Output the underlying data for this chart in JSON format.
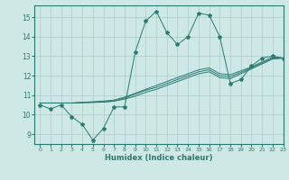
{
  "xlabel": "Humidex (Indice chaleur)",
  "xlim": [
    -0.5,
    23
  ],
  "ylim": [
    8.5,
    15.6
  ],
  "yticks": [
    9,
    10,
    11,
    12,
    13,
    14,
    15
  ],
  "xticks": [
    0,
    1,
    2,
    3,
    4,
    5,
    6,
    7,
    8,
    9,
    10,
    11,
    12,
    13,
    14,
    15,
    16,
    17,
    18,
    19,
    20,
    21,
    22,
    23
  ],
  "bg_color": "#cee8e6",
  "grid_color": "#b0d0ce",
  "line_color": "#2a7a70",
  "line1_x": [
    0,
    1,
    2,
    3,
    4,
    5,
    6,
    7,
    8,
    9,
    10,
    11,
    12,
    13,
    14,
    15,
    16,
    17,
    18,
    19,
    20,
    21,
    22,
    23
  ],
  "line1_y": [
    10.5,
    10.3,
    10.5,
    9.9,
    9.5,
    8.7,
    9.3,
    10.4,
    10.4,
    13.2,
    14.8,
    15.3,
    14.2,
    13.6,
    14.0,
    15.2,
    15.1,
    14.0,
    11.6,
    11.8,
    12.5,
    12.9,
    13.0,
    12.9
  ],
  "line2_x": [
    0,
    2,
    3,
    6,
    7,
    8,
    9,
    10,
    11,
    12,
    13,
    14,
    15,
    16,
    17,
    18,
    20,
    21,
    22,
    23
  ],
  "line2_y": [
    10.6,
    10.6,
    10.6,
    10.65,
    10.7,
    10.8,
    10.95,
    11.15,
    11.3,
    11.5,
    11.7,
    11.9,
    12.1,
    12.2,
    11.9,
    11.85,
    12.35,
    12.6,
    12.85,
    12.9
  ],
  "line3_x": [
    0,
    2,
    3,
    6,
    7,
    8,
    9,
    10,
    11,
    12,
    13,
    14,
    15,
    16,
    17,
    18,
    20,
    21,
    22,
    23
  ],
  "line3_y": [
    10.6,
    10.6,
    10.6,
    10.65,
    10.7,
    10.85,
    11.05,
    11.25,
    11.4,
    11.6,
    11.8,
    12.0,
    12.2,
    12.3,
    12.0,
    11.95,
    12.4,
    12.65,
    12.9,
    12.9
  ],
  "line4_x": [
    0,
    2,
    3,
    6,
    7,
    8,
    9,
    10,
    11,
    12,
    13,
    14,
    15,
    16,
    17,
    18,
    20,
    21,
    22,
    23
  ],
  "line4_y": [
    10.6,
    10.6,
    10.6,
    10.7,
    10.75,
    10.9,
    11.1,
    11.3,
    11.5,
    11.7,
    11.9,
    12.1,
    12.3,
    12.4,
    12.1,
    12.05,
    12.45,
    12.7,
    12.95,
    12.9
  ]
}
